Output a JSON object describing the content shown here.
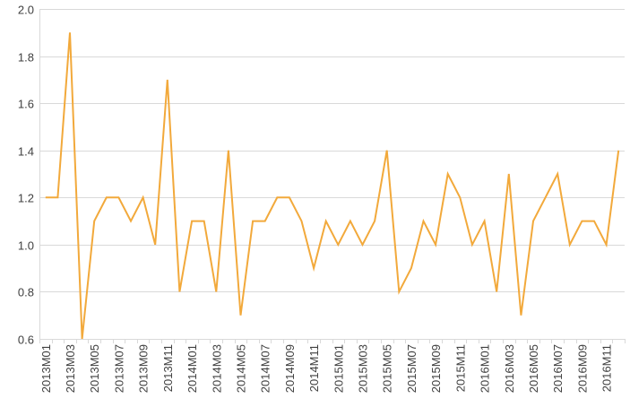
{
  "chart_data": {
    "type": "line",
    "title": "",
    "xlabel": "",
    "ylabel": "",
    "ylim": [
      0.6,
      2.0
    ],
    "y_ticks": [
      "0.6",
      "0.8",
      "1.0",
      "1.2",
      "1.4",
      "1.6",
      "1.8",
      "2.0"
    ],
    "grid": "horizontal",
    "legend": "none",
    "colors": {
      "series": "#F2A93B",
      "grid": "#D9D9D9",
      "text": "#404040"
    },
    "x": [
      "2013M01",
      "2013M02",
      "2013M03",
      "2013M04",
      "2013M05",
      "2013M06",
      "2013M07",
      "2013M08",
      "2013M09",
      "2013M10",
      "2013M11",
      "2013M12",
      "2014M01",
      "2014M02",
      "2014M03",
      "2014M04",
      "2014M05",
      "2014M06",
      "2014M07",
      "2014M08",
      "2014M09",
      "2014M10",
      "2014M11",
      "2014M12",
      "2015M01",
      "2015M02",
      "2015M03",
      "2015M04",
      "2015M05",
      "2015M06",
      "2015M07",
      "2015M08",
      "2015M09",
      "2015M10",
      "2015M11",
      "2015M12",
      "2016M01",
      "2016M02",
      "2016M03",
      "2016M04",
      "2016M05",
      "2016M06",
      "2016M07",
      "2016M08",
      "2016M09",
      "2016M10",
      "2016M11",
      "2016M12"
    ],
    "x_tick_labels": [
      "2013M01",
      "2013M03",
      "2013M05",
      "2013M07",
      "2013M09",
      "2013M11",
      "2014M01",
      "2014M03",
      "2014M05",
      "2014M07",
      "2014M09",
      "2014M11",
      "2015M01",
      "2015M03",
      "2015M05",
      "2015M07",
      "2015M09",
      "2015M11",
      "2016M01",
      "2016M03",
      "2016M05",
      "2016M07",
      "2016M09",
      "2016M11"
    ],
    "series": [
      {
        "values": [
          1.2,
          1.2,
          1.9,
          0.6,
          1.1,
          1.2,
          1.2,
          1.1,
          1.2,
          1.0,
          1.7,
          0.8,
          1.1,
          1.1,
          0.8,
          1.4,
          0.7,
          1.1,
          1.1,
          1.2,
          1.2,
          1.1,
          0.9,
          1.1,
          1.0,
          1.1,
          1.0,
          1.1,
          1.4,
          0.8,
          0.9,
          1.1,
          1.0,
          1.3,
          1.2,
          1.0,
          1.1,
          0.8,
          1.3,
          0.7,
          1.1,
          1.2,
          1.3,
          1.0,
          1.1,
          1.1,
          1.0,
          1.4
        ]
      }
    ]
  }
}
